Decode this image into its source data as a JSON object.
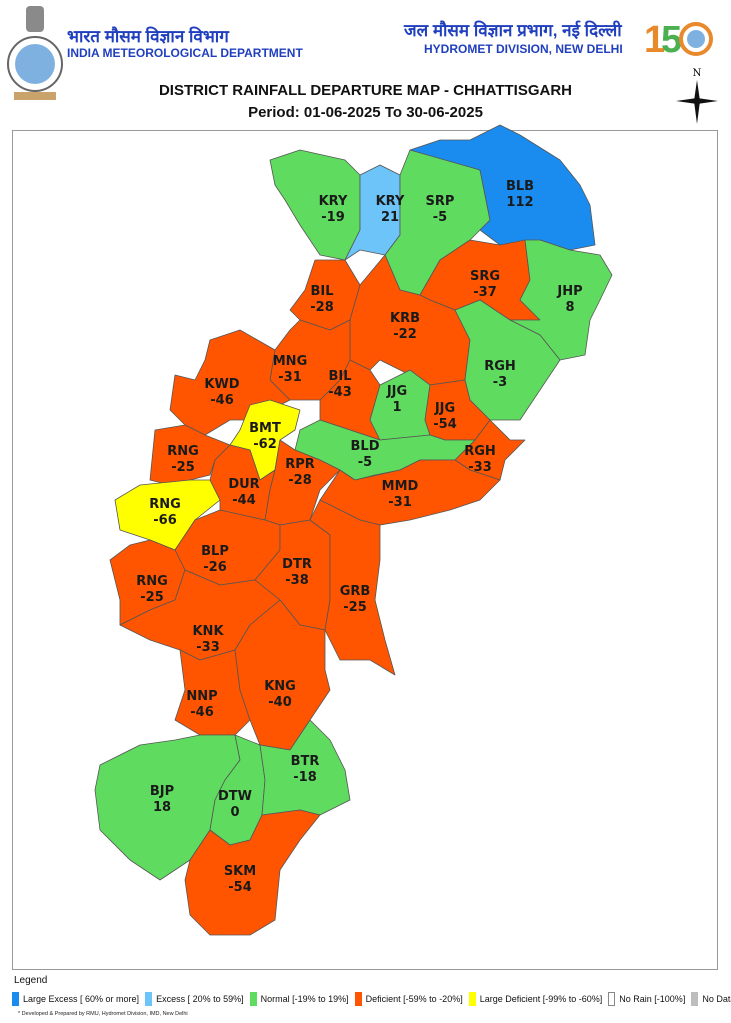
{
  "header": {
    "org_hindi": "भारत मौसम विज्ञान विभाग",
    "org_english": "INDIA METEOROLOGICAL DEPARTMENT",
    "division_hindi": "जल मौसम विज्ञान प्रभाग, नई दिल्ली",
    "division_english": "HYDROMET DIVISION, NEW DELHI",
    "anniversary_logo": "150",
    "compass_label": "N"
  },
  "title": "DISTRICT RAINFALL DEPARTURE MAP - CHHATTISGARH",
  "period": "Period: 01-06-2025 To 30-06-2025",
  "colors": {
    "large_excess": "#1a8cf0",
    "excess": "#6cc4f8",
    "normal": "#5fdc5f",
    "deficient": "#ff5500",
    "large_deficient": "#ffff00",
    "no_rain": "#ffffff",
    "no_data": "#bdbdbd"
  },
  "districts": [
    {
      "code": "KRY",
      "value": "-19",
      "category": "normal"
    },
    {
      "code": "KRY",
      "value": "21",
      "category": "excess"
    },
    {
      "code": "SRP",
      "value": "-5",
      "category": "normal"
    },
    {
      "code": "BLB",
      "value": "112",
      "category": "large_excess"
    },
    {
      "code": "SRG",
      "value": "-37",
      "category": "deficient"
    },
    {
      "code": "JHP",
      "value": "8",
      "category": "normal"
    },
    {
      "code": "BIL",
      "value": "-28",
      "category": "deficient"
    },
    {
      "code": "KRB",
      "value": "-22",
      "category": "deficient"
    },
    {
      "code": "RGH",
      "value": "-3",
      "category": "normal"
    },
    {
      "code": "MNG",
      "value": "-31",
      "category": "deficient"
    },
    {
      "code": "BIL",
      "value": "-43",
      "category": "deficient"
    },
    {
      "code": "KWD",
      "value": "-46",
      "category": "deficient"
    },
    {
      "code": "JJG",
      "value": "1",
      "category": "normal"
    },
    {
      "code": "JJG",
      "value": "-54",
      "category": "deficient"
    },
    {
      "code": "BMT",
      "value": "-62",
      "category": "large_deficient"
    },
    {
      "code": "RNG",
      "value": "-25",
      "category": "deficient"
    },
    {
      "code": "BLD",
      "value": "-5",
      "category": "normal"
    },
    {
      "code": "RGH",
      "value": "-33",
      "category": "deficient"
    },
    {
      "code": "RNG",
      "value": "-66",
      "category": "large_deficient"
    },
    {
      "code": "DUR",
      "value": "-44",
      "category": "deficient"
    },
    {
      "code": "RPR",
      "value": "-28",
      "category": "deficient"
    },
    {
      "code": "MMD",
      "value": "-31",
      "category": "deficient"
    },
    {
      "code": "BLP",
      "value": "-26",
      "category": "deficient"
    },
    {
      "code": "RNG",
      "value": "-25",
      "category": "deficient"
    },
    {
      "code": "DTR",
      "value": "-38",
      "category": "deficient"
    },
    {
      "code": "GRB",
      "value": "-25",
      "category": "deficient"
    },
    {
      "code": "KNK",
      "value": "-33",
      "category": "deficient"
    },
    {
      "code": "NNP",
      "value": "-46",
      "category": "deficient"
    },
    {
      "code": "KNG",
      "value": "-40",
      "category": "deficient"
    },
    {
      "code": "BJP",
      "value": "18",
      "category": "normal"
    },
    {
      "code": "DTW",
      "value": "0",
      "category": "normal"
    },
    {
      "code": "BTR",
      "value": "-18",
      "category": "normal"
    },
    {
      "code": "SKM",
      "value": "-54",
      "category": "deficient"
    }
  ],
  "legend": {
    "title": "Legend",
    "items": [
      {
        "key": "large_excess",
        "label": "Large Excess [ 60% or more]"
      },
      {
        "key": "excess",
        "label": "Excess [ 20% to 59%]"
      },
      {
        "key": "normal",
        "label": "Normal [-19% to 19%]"
      },
      {
        "key": "deficient",
        "label": "Deficient [-59% to -20%]"
      },
      {
        "key": "large_deficient",
        "label": "Large Deficient [-99% to -60%]"
      },
      {
        "key": "no_rain",
        "label": "No Rain  [-100%]"
      },
      {
        "key": "no_data",
        "label": "No Data"
      }
    ]
  },
  "credit": "* Developed & Prepared by RMU, Hydromet Division, IMD, New Delhi"
}
